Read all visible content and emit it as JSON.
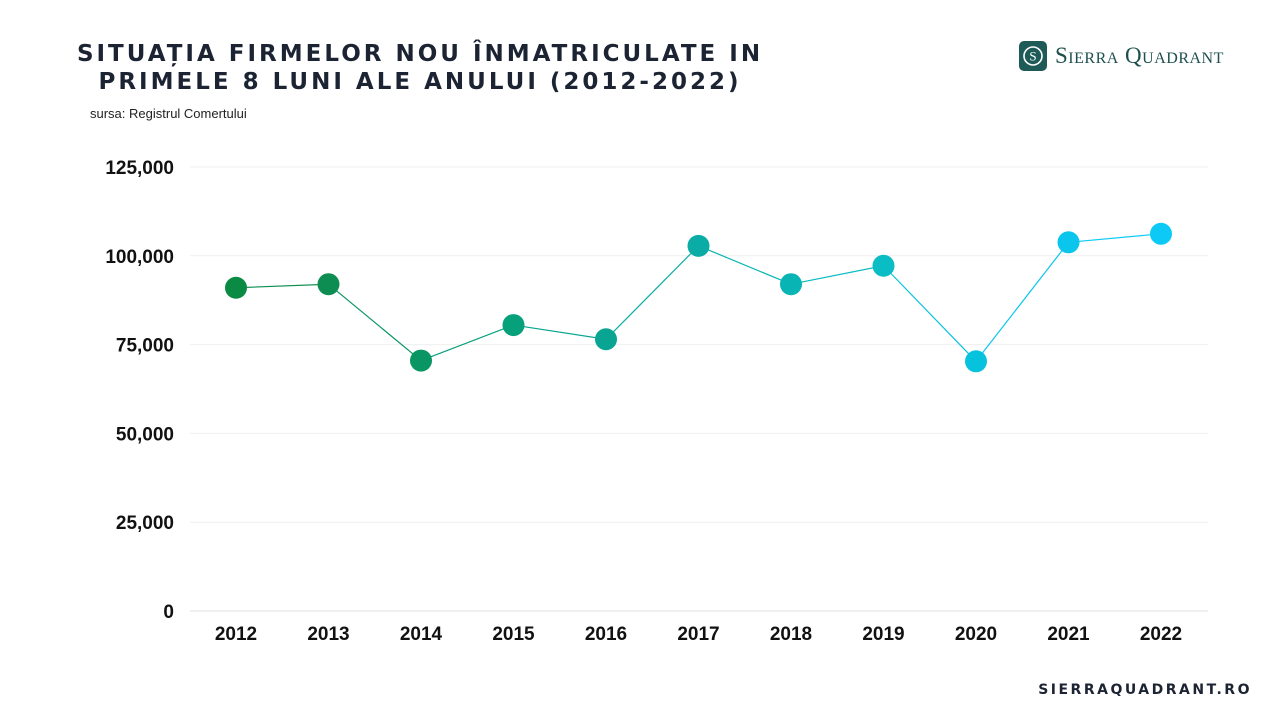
{
  "header": {
    "title_line1": "SITUAȚIA FIRMELOR NOU ÎNMATRICULATE IN",
    "title_line2": "PRIMELE 8 LUNI ALE ANULUI (2012-2022)",
    "source": "sursa: Registrul Comertului"
  },
  "brand": {
    "logo_text": "Sierra Quadrant",
    "logo_icon": "sq-monogram-icon",
    "logo_color": "#1d5a58",
    "website": "SIERRAQUADRANT.RO"
  },
  "chart_data": {
    "type": "line",
    "title": "SITUAȚIA FIRMELOR NOU ÎNMATRICULATE IN PRIMELE 8 LUNI ALE ANULUI (2012-2022)",
    "xlabel": "",
    "ylabel": "",
    "categories": [
      "2012",
      "2013",
      "2014",
      "2015",
      "2016",
      "2017",
      "2018",
      "2019",
      "2020",
      "2021",
      "2022"
    ],
    "values": [
      91000,
      92000,
      70500,
      80500,
      76500,
      102800,
      92000,
      97200,
      70300,
      103800,
      106200
    ],
    "ylim": [
      0,
      125000
    ],
    "yticks": [
      0,
      25000,
      50000,
      75000,
      100000,
      125000
    ],
    "ytick_labels": [
      "0",
      "25,000",
      "50,000",
      "75,000",
      "100,000",
      "125,000"
    ],
    "grid": true,
    "legend": "none",
    "colors": [
      "#0a8a43",
      "#0e8d52",
      "#0a9663",
      "#06a07a",
      "#0aa592",
      "#0aaca5",
      "#09b4b4",
      "#0abcc4",
      "#07c2dc",
      "#0ac6ec",
      "#0ccaf5"
    ]
  }
}
